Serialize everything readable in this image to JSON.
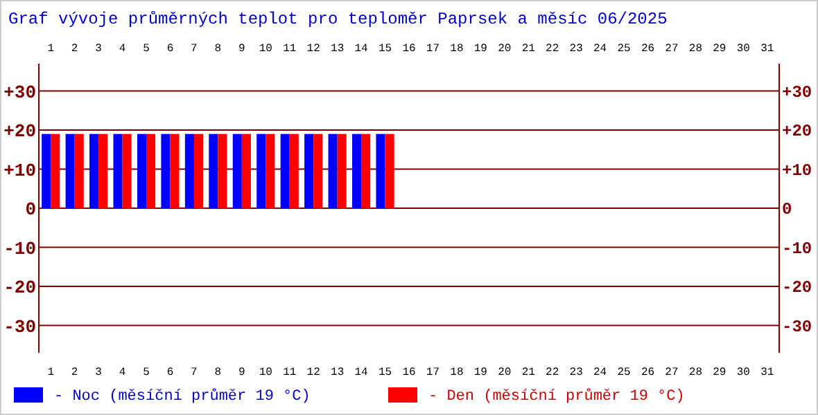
{
  "chart_data": {
    "type": "bar",
    "title": "Graf vývoje průměrných teplot pro teploměr Paprsek a měsíc 06/2025",
    "categories": [
      "1",
      "2",
      "3",
      "4",
      "5",
      "6",
      "7",
      "8",
      "9",
      "10",
      "11",
      "12",
      "13",
      "14",
      "15",
      "16",
      "17",
      "18",
      "19",
      "20",
      "21",
      "22",
      "23",
      "24",
      "25",
      "26",
      "27",
      "28",
      "29",
      "30",
      "31"
    ],
    "series": [
      {
        "name": "- Noc (měsíční průměr 19 °C)",
        "color": "#0000ff",
        "values": [
          19,
          19,
          19,
          19,
          19,
          19,
          19,
          19,
          19,
          19,
          19,
          19,
          19,
          19,
          19,
          null,
          null,
          null,
          null,
          null,
          null,
          null,
          null,
          null,
          null,
          null,
          null,
          null,
          null,
          null,
          null
        ]
      },
      {
        "name": "- Den (měsíční průměr 19 °C)",
        "color": "#ff0000",
        "values": [
          19,
          19,
          19,
          19,
          19,
          19,
          19,
          19,
          19,
          19,
          19,
          19,
          19,
          19,
          19,
          null,
          null,
          null,
          null,
          null,
          null,
          null,
          null,
          null,
          null,
          null,
          null,
          null,
          null,
          null,
          null
        ]
      }
    ],
    "ylim": [
      -37,
      37
    ],
    "yticks": [
      {
        "value": 30,
        "label": "+30"
      },
      {
        "value": 20,
        "label": "+20"
      },
      {
        "value": 10,
        "label": "+10"
      },
      0,
      -10,
      -20,
      -30
    ],
    "y2lim": [
      -37,
      37
    ],
    "y2ticks": [
      {
        "value": 30,
        "label": "+30"
      },
      {
        "value": 20,
        "label": "+20"
      },
      {
        "value": 10,
        "label": "+10"
      },
      0,
      -10,
      -20,
      -30
    ],
    "grid": "y",
    "legend": "bottom"
  }
}
